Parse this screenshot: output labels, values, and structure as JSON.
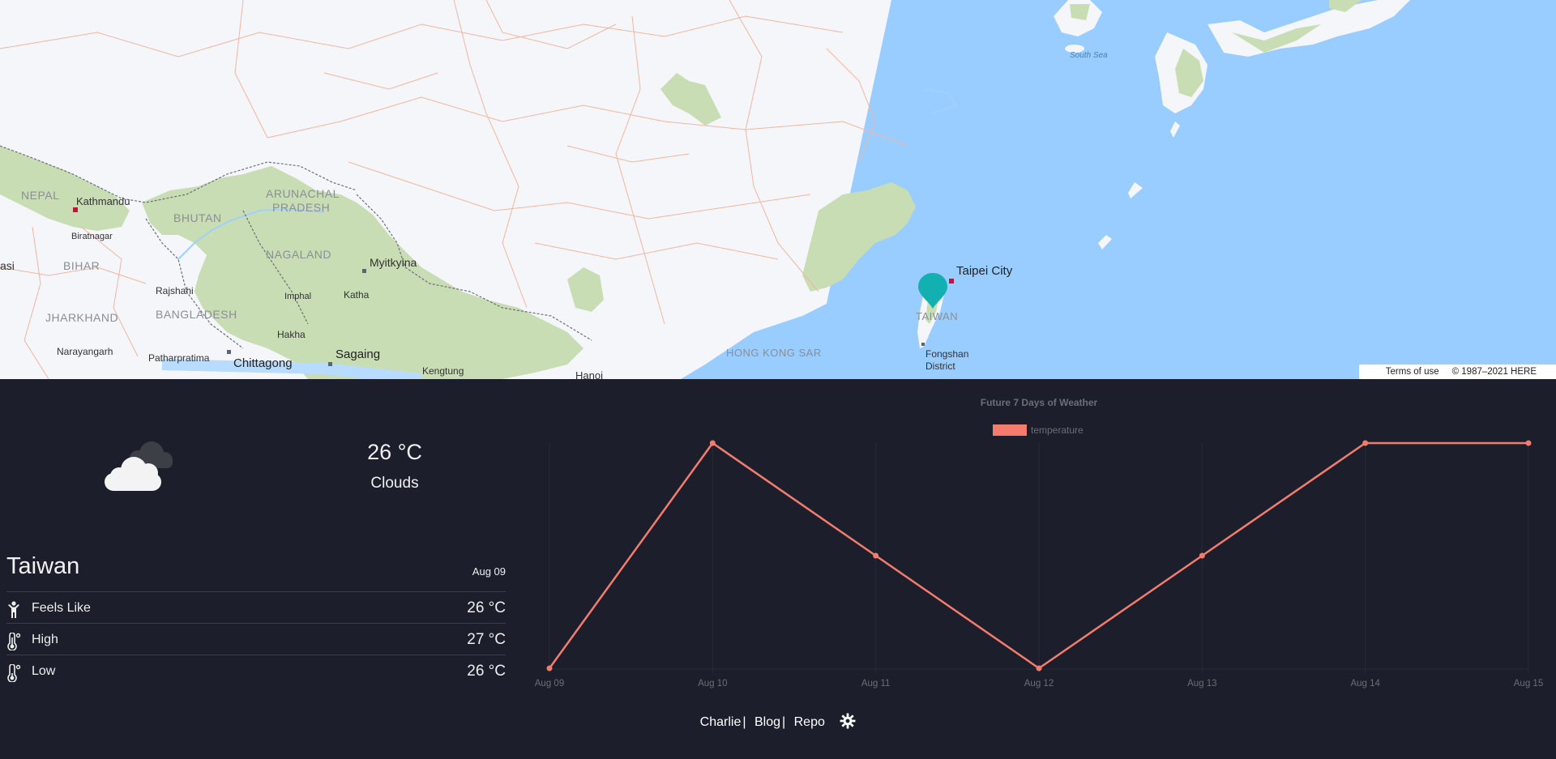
{
  "map": {
    "labels": {
      "nepal": "NEPAL",
      "kathmandu": "Kathmandu",
      "biratnagar": "Biratnagar",
      "bhutan": "BHUTAN",
      "arunachal": "ARUNACHAL",
      "pradesh": "PRADESH",
      "bihar": "BIHAR",
      "asi": "asi",
      "nagaland": "NAGALAND",
      "myitkyina": "Myitkyina",
      "rajshahi": "Rajshahi",
      "imphal": "Imphal",
      "katha": "Katha",
      "jharkhand": "JHARKHAND",
      "bangladesh": "BANGLADESH",
      "hakha": "Hakha",
      "narayangarh": "Narayangarh",
      "patharpratima": "Patharpratima",
      "chittagong": "Chittagong",
      "sagaing": "Sagaing",
      "kengtung": "Kengtung",
      "hanoi": "Hanoi",
      "hongkong": "HONG KONG SAR",
      "taipei": "Taipei City",
      "taiwan": "TAIWAN",
      "fongshan1": "Fongshan",
      "fongshan2": "District",
      "south_sea": "South Sea"
    },
    "terms": "Terms of use",
    "copyright": "© 1987–2021 HERE",
    "colors": {
      "water": "#99ccff",
      "land": "#f4f6f9",
      "forest": "#c8ddb4",
      "border": "#f2b6a0",
      "marker": "#12b0b0"
    }
  },
  "weather": {
    "icon": "clouds-icon",
    "temp": "26 °C",
    "desc": "Clouds",
    "location": "Taiwan",
    "date": "Aug 09",
    "rows": [
      {
        "icon": "person-icon",
        "label": "Feels Like",
        "value": "26 °C"
      },
      {
        "icon": "thermometer-high-icon",
        "label": "High",
        "value": "27 °C"
      },
      {
        "icon": "thermometer-low-icon",
        "label": "Low",
        "value": "26 °C"
      }
    ]
  },
  "chart_data": {
    "type": "line",
    "title": "Future 7 Days of Weather",
    "legend": "temperature",
    "legend_position": "top",
    "categories": [
      "Aug 09",
      "Aug 10",
      "Aug 11",
      "Aug 12",
      "Aug 13",
      "Aug 14",
      "Aug 15"
    ],
    "series": [
      {
        "name": "temperature",
        "values": [
          26,
          27,
          26.5,
          26,
          26.5,
          27,
          27
        ]
      }
    ],
    "ylim": [
      26,
      27
    ],
    "grid": true,
    "color": "#f47c6e"
  },
  "footer": {
    "links": [
      "Charlie",
      "Blog",
      "Repo"
    ],
    "separator": "|",
    "settings_icon": "gear-icon"
  }
}
